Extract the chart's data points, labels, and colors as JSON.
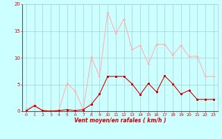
{
  "x": [
    0,
    1,
    2,
    3,
    4,
    5,
    6,
    7,
    8,
    9,
    10,
    11,
    12,
    13,
    14,
    15,
    16,
    17,
    18,
    19,
    20,
    21,
    22,
    23
  ],
  "rafales": [
    0.3,
    1.2,
    0.2,
    0.1,
    0.2,
    5.2,
    3.8,
    0.3,
    10.1,
    6.5,
    18.5,
    14.5,
    17.2,
    11.5,
    12.3,
    8.8,
    12.5,
    12.5,
    10.5,
    12.3,
    10.2,
    10.3,
    6.5,
    6.5
  ],
  "moyen": [
    0.1,
    1.0,
    0.1,
    0.0,
    0.1,
    0.3,
    0.1,
    0.3,
    1.3,
    3.2,
    6.5,
    6.5,
    6.5,
    5.1,
    3.1,
    5.2,
    3.6,
    6.6,
    5.1,
    3.2,
    3.9,
    2.2,
    2.2,
    2.2
  ],
  "color_rafales": "#FFB0B0",
  "color_moyen": "#CC0000",
  "bg_color": "#CCFFFF",
  "grid_color": "#AACCCC",
  "xlabel": "Vent moyen/en rafales ( km/h )",
  "ylim": [
    0,
    20
  ],
  "yticks": [
    0,
    5,
    10,
    15,
    20
  ],
  "xticks": [
    0,
    1,
    2,
    3,
    4,
    5,
    6,
    7,
    8,
    9,
    10,
    11,
    12,
    13,
    14,
    15,
    16,
    17,
    18,
    19,
    20,
    21,
    22,
    23
  ],
  "xlabel_color": "#CC0000",
  "tick_color": "#CC0000",
  "ytick_color": "#CC0000"
}
